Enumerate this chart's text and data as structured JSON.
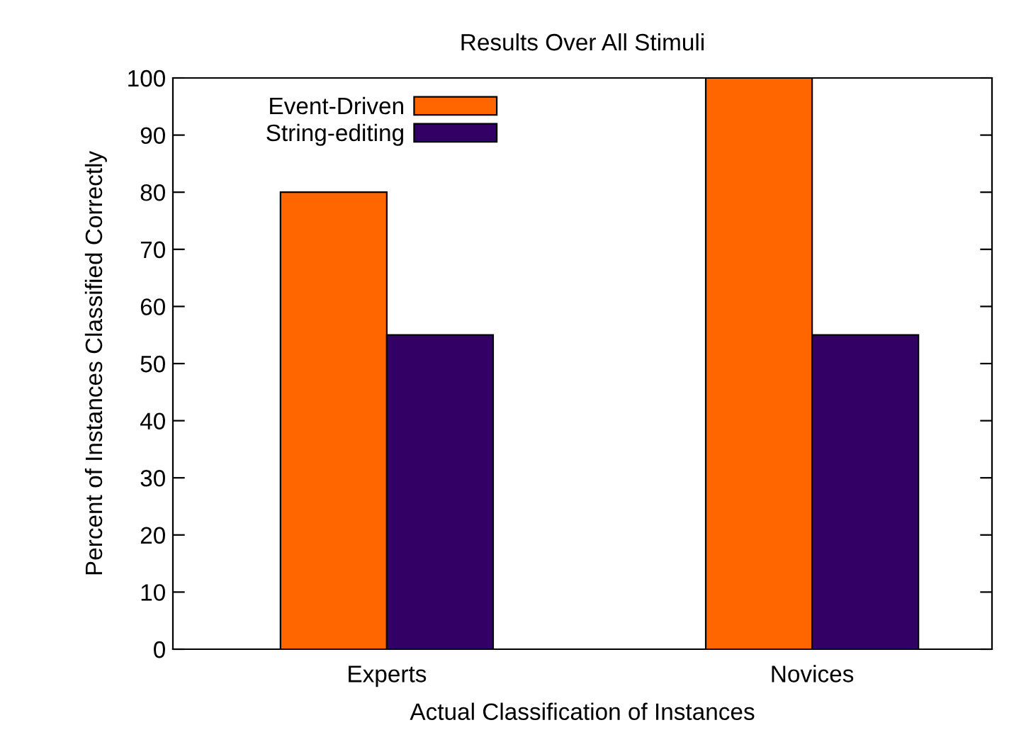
{
  "chart_data": {
    "type": "bar",
    "title": "Results Over All Stimuli",
    "xlabel": "Actual Classification of Instances",
    "ylabel": "Percent of Instances Classified Correctly",
    "categories": [
      "Experts",
      "Novices"
    ],
    "series": [
      {
        "name": "Event-Driven",
        "color": "#ff6600",
        "values": [
          80,
          100
        ]
      },
      {
        "name": "String-editing",
        "color": "#330066",
        "values": [
          55,
          55
        ]
      }
    ],
    "ylim": [
      0,
      100
    ],
    "yticks": [
      0,
      10,
      20,
      30,
      40,
      50,
      60,
      70,
      80,
      90,
      100
    ],
    "grid": false,
    "legend": "top left"
  }
}
